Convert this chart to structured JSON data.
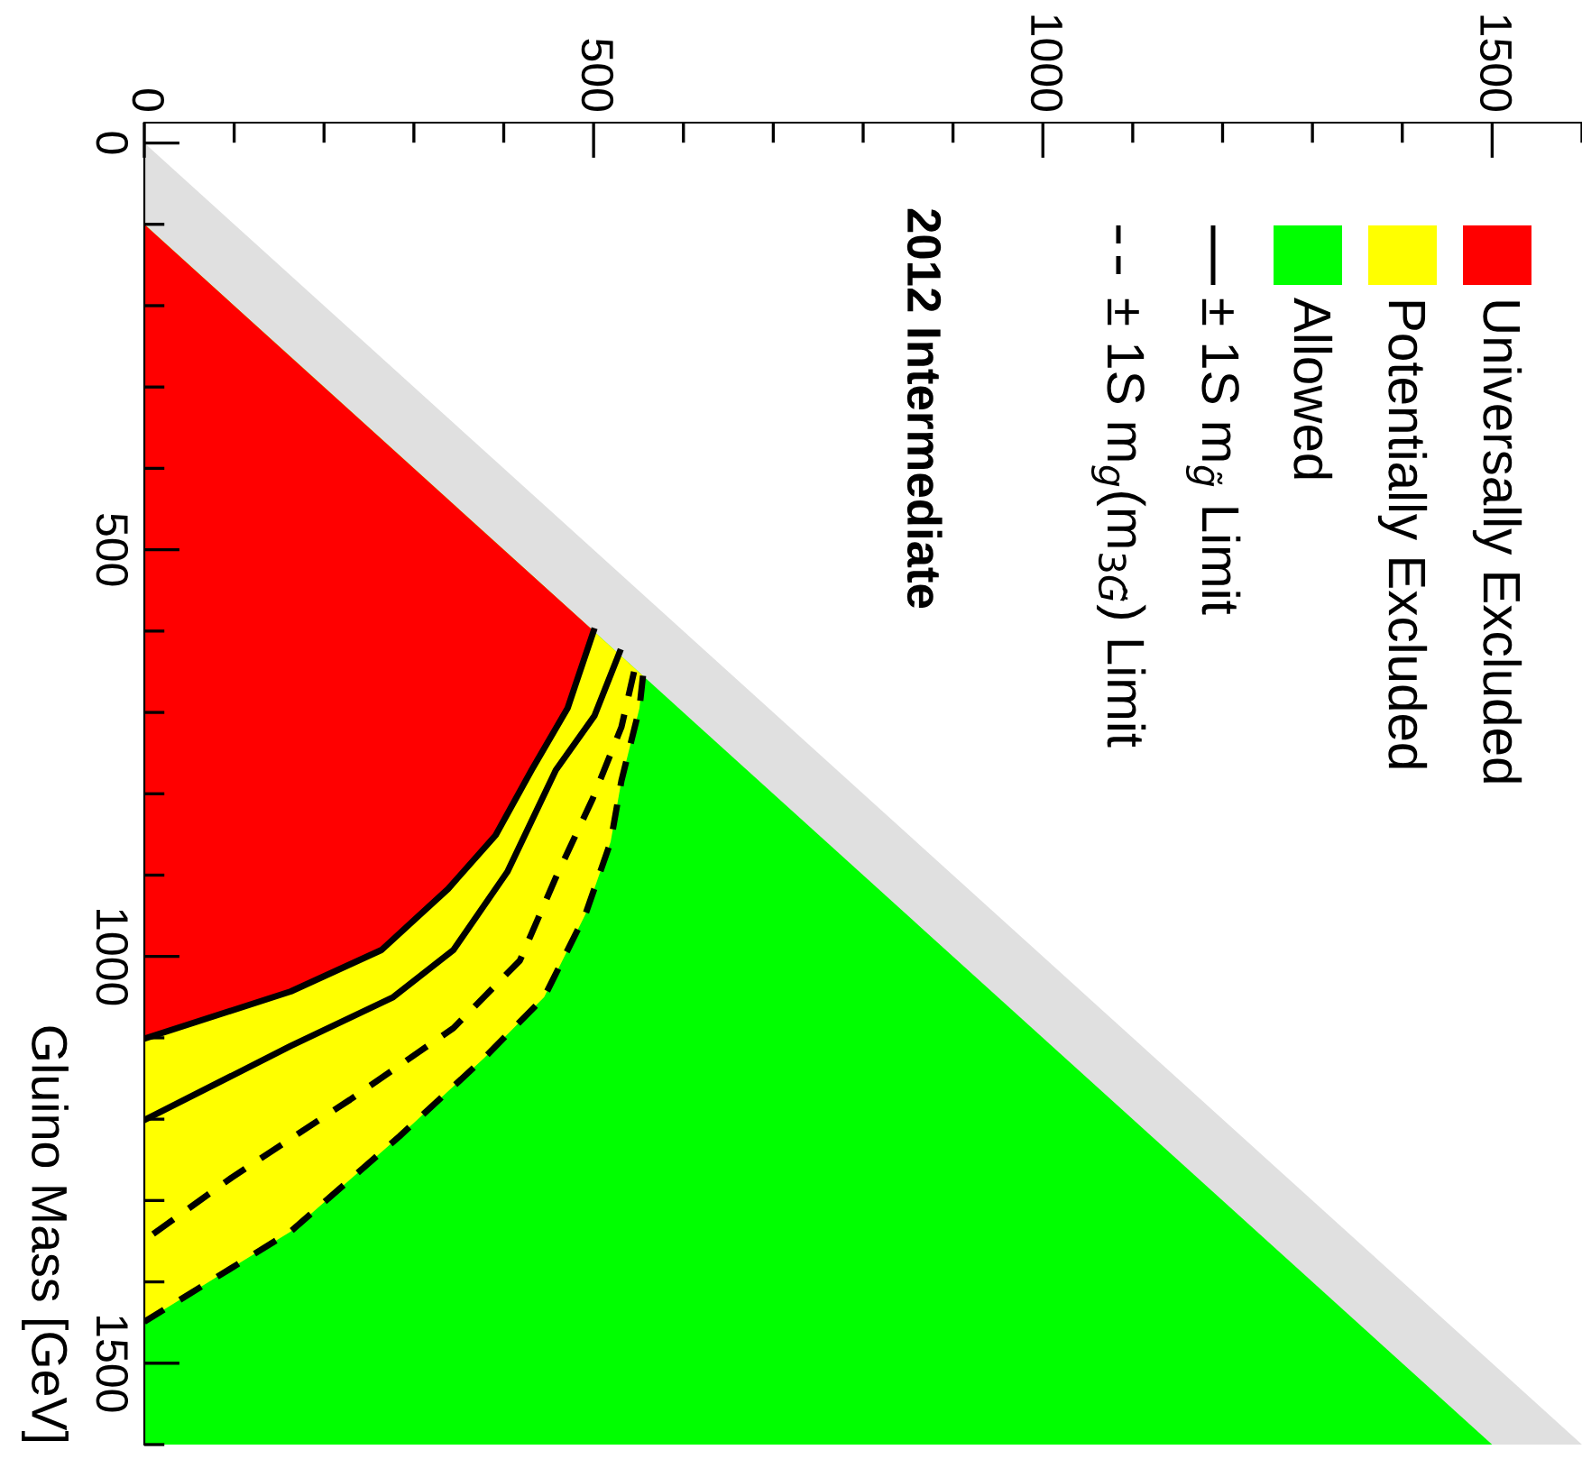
{
  "chart_data": {
    "type": "area",
    "orientation": "horizontal",
    "ylabel": "Gluino Mass [GeV]",
    "xlim": [
      0,
      1600
    ],
    "xticks": [
      0,
      500,
      1000,
      1500
    ],
    "ylim": [
      1600,
      -25
    ],
    "yticks": [
      0,
      500,
      1000,
      1500
    ],
    "legend": "top right",
    "grid": false,
    "annotations": [
      "2012 Intermediate"
    ],
    "series": [
      {
        "type": "line",
        "name": "± 1S m$_{g}$(m$_{3G̃}$) Limit",
        "color": "#000000",
        "line_style": "dashed",
        "x": [
          650,
          718,
          806,
          903,
          1005,
          1088,
          1176,
          1272,
          1349
        ],
        "values": [
          545,
          531,
          499,
          458,
          418,
          344,
          229,
          97,
          0
        ]
      },
      {
        "type": "line",
        "name": "± 1S m$_{g̃}$ Limit",
        "color": "#000000",
        "line_style": "solid",
        "x": [
          626,
          704,
          771,
          896,
          992,
          1050,
          1110,
          1201
        ],
        "values": [
          529,
          501,
          458,
          404,
          344,
          277,
          163,
          0
        ]
      },
      {
        "color": "#e0e0e0",
        "x": [
          0,
          1600
        ],
        "values": [
          0,
          1600
        ]
      },
      {
        "name": "Allowed",
        "color": "#00ff00",
        "x": [
          100,
          1600
        ],
        "values": [
          0,
          1500
        ]
      },
      {
        "name": "Potentially Excluded",
        "color": "#ffff00",
        "line_style": "dashed",
        "x": [
          100,
          655,
          695,
          784,
          859,
          948,
          1050,
          1125,
          1221,
          1338,
          1449
        ],
        "values": [
          0,
          555,
          551,
          531,
          519,
          491,
          445,
          378,
          284,
          163,
          0
        ]
      },
      {
        "name": "Universally Excluded",
        "color": "#ff0000",
        "line_style": "solid",
        "x": [
          100,
          600,
          695,
          771,
          851,
          917,
          992,
          1043,
          1101
        ],
        "values": [
          0,
          500,
          471,
          431,
          391,
          338,
          264,
          163,
          0
        ]
      }
    ]
  }
}
